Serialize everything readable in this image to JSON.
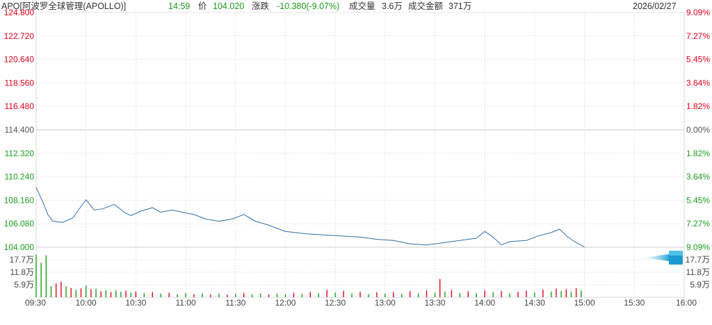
{
  "header": {
    "symbol_name": "APO[阿波罗全球管理(APOLLO)]",
    "time": "14:59",
    "price_label": "价",
    "price": "104.020",
    "change_label": "涨跌",
    "change": "-10.380(-9.07%)",
    "volume_label": "成交量",
    "volume": "3.6万",
    "amount_label": "成交金额",
    "amount": "371万",
    "date": "2026/02/27"
  },
  "colors": {
    "up": "#e0001b",
    "down": "#1a9c1a",
    "neutral": "#555555",
    "price_line": "#2e6fa8",
    "grid": "#e3e3e3",
    "baseline": "#c8c8c8"
  },
  "chart_data": {
    "type": "line",
    "title": "",
    "prev_close": 114.4,
    "price_axis": {
      "ticks": [
        "124.800",
        "122.720",
        "120.640",
        "118.560",
        "116.480",
        "114.400",
        "112.320",
        "110.240",
        "108.160",
        "106.080",
        "104.000"
      ],
      "pct_ticks": [
        "9.09%",
        "7.27%",
        "5.45%",
        "3.64%",
        "1.82%",
        "0.00%",
        "1.82%",
        "3.64%",
        "5.45%",
        "7.27%",
        "9.09%"
      ],
      "range": [
        104.0,
        124.8
      ]
    },
    "volume_axis": {
      "ticks": [
        "17.7万",
        "11.8万",
        "5.9万"
      ],
      "range": [
        0,
        23.6
      ]
    },
    "x_axis": {
      "ticks": [
        "09:30",
        "10:00",
        "10:30",
        "11:00",
        "11:30",
        "12:00",
        "12:30",
        "13:00",
        "13:30",
        "14:00",
        "14:30",
        "15:00",
        "15:30",
        "16:00"
      ]
    },
    "price_series": [
      {
        "t": "09:30",
        "price": 109.3
      },
      {
        "t": "09:34",
        "price": 108.0
      },
      {
        "t": "09:37",
        "price": 106.9
      },
      {
        "t": "09:40",
        "price": 106.3
      },
      {
        "t": "09:46",
        "price": 106.2
      },
      {
        "t": "09:52",
        "price": 106.6
      },
      {
        "t": "09:55",
        "price": 107.2
      },
      {
        "t": "10:00",
        "price": 108.2
      },
      {
        "t": "10:05",
        "price": 107.3
      },
      {
        "t": "10:10",
        "price": 107.4
      },
      {
        "t": "10:17",
        "price": 107.8
      },
      {
        "t": "10:23",
        "price": 107.1
      },
      {
        "t": "10:27",
        "price": 106.8
      },
      {
        "t": "10:33",
        "price": 107.2
      },
      {
        "t": "10:40",
        "price": 107.5
      },
      {
        "t": "10:45",
        "price": 107.1
      },
      {
        "t": "10:52",
        "price": 107.3
      },
      {
        "t": "10:58",
        "price": 107.1
      },
      {
        "t": "11:05",
        "price": 106.9
      },
      {
        "t": "11:12",
        "price": 106.5
      },
      {
        "t": "11:20",
        "price": 106.3
      },
      {
        "t": "11:28",
        "price": 106.5
      },
      {
        "t": "11:35",
        "price": 106.9
      },
      {
        "t": "11:42",
        "price": 106.3
      },
      {
        "t": "11:49",
        "price": 106.0
      },
      {
        "t": "12:00",
        "price": 105.4
      },
      {
        "t": "12:12",
        "price": 105.2
      },
      {
        "t": "12:22",
        "price": 105.1
      },
      {
        "t": "12:33",
        "price": 105.0
      },
      {
        "t": "12:45",
        "price": 104.9
      },
      {
        "t": "12:55",
        "price": 104.7
      },
      {
        "t": "13:05",
        "price": 104.6
      },
      {
        "t": "13:15",
        "price": 104.3
      },
      {
        "t": "13:25",
        "price": 104.2
      },
      {
        "t": "13:35",
        "price": 104.4
      },
      {
        "t": "13:45",
        "price": 104.6
      },
      {
        "t": "13:55",
        "price": 104.8
      },
      {
        "t": "14:00",
        "price": 105.4
      },
      {
        "t": "14:05",
        "price": 104.9
      },
      {
        "t": "14:10",
        "price": 104.2
      },
      {
        "t": "14:15",
        "price": 104.5
      },
      {
        "t": "14:25",
        "price": 104.6
      },
      {
        "t": "14:32",
        "price": 105.0
      },
      {
        "t": "14:40",
        "price": 105.3
      },
      {
        "t": "14:45",
        "price": 105.6
      },
      {
        "t": "14:50",
        "price": 104.9
      },
      {
        "t": "14:55",
        "price": 104.4
      },
      {
        "t": "15:00",
        "price": 104.02
      }
    ],
    "volume_series": [
      {
        "t": "09:30",
        "vol": 20.1,
        "dir": "down"
      },
      {
        "t": "09:33",
        "vol": 16.3,
        "dir": "down"
      },
      {
        "t": "09:36",
        "vol": 19.8,
        "dir": "down"
      },
      {
        "t": "09:39",
        "vol": 5.2,
        "dir": "down"
      },
      {
        "t": "09:42",
        "vol": 6.5,
        "dir": "up"
      },
      {
        "t": "09:45",
        "vol": 7.3,
        "dir": "up"
      },
      {
        "t": "09:48",
        "vol": 5.1,
        "dir": "down"
      },
      {
        "t": "09:51",
        "vol": 4.4,
        "dir": "up"
      },
      {
        "t": "09:54",
        "vol": 3.5,
        "dir": "down"
      },
      {
        "t": "09:57",
        "vol": 4.2,
        "dir": "up"
      },
      {
        "t": "10:00",
        "vol": 5.6,
        "dir": "down"
      },
      {
        "t": "10:03",
        "vol": 3.8,
        "dir": "up"
      },
      {
        "t": "10:06",
        "vol": 4.1,
        "dir": "down"
      },
      {
        "t": "10:09",
        "vol": 2.8,
        "dir": "up"
      },
      {
        "t": "10:12",
        "vol": 3.4,
        "dir": "down"
      },
      {
        "t": "10:15",
        "vol": 2.5,
        "dir": "up"
      },
      {
        "t": "10:18",
        "vol": 3.3,
        "dir": "down"
      },
      {
        "t": "10:21",
        "vol": 2.6,
        "dir": "down"
      },
      {
        "t": "10:24",
        "vol": 3.1,
        "dir": "up"
      },
      {
        "t": "10:27",
        "vol": 2.2,
        "dir": "down"
      },
      {
        "t": "10:30",
        "vol": 2.7,
        "dir": "up"
      },
      {
        "t": "10:35",
        "vol": 1.9,
        "dir": "down"
      },
      {
        "t": "10:40",
        "vol": 2.4,
        "dir": "up"
      },
      {
        "t": "10:45",
        "vol": 1.7,
        "dir": "down"
      },
      {
        "t": "10:50",
        "vol": 2.1,
        "dir": "up"
      },
      {
        "t": "10:55",
        "vol": 1.5,
        "dir": "down"
      },
      {
        "t": "11:00",
        "vol": 2.0,
        "dir": "down"
      },
      {
        "t": "11:05",
        "vol": 1.4,
        "dir": "up"
      },
      {
        "t": "11:10",
        "vol": 1.8,
        "dir": "down"
      },
      {
        "t": "11:15",
        "vol": 1.3,
        "dir": "up"
      },
      {
        "t": "11:20",
        "vol": 1.7,
        "dir": "down"
      },
      {
        "t": "11:25",
        "vol": 1.2,
        "dir": "up"
      },
      {
        "t": "11:30",
        "vol": 1.6,
        "dir": "down"
      },
      {
        "t": "11:35",
        "vol": 2.0,
        "dir": "up"
      },
      {
        "t": "11:40",
        "vol": 1.4,
        "dir": "down"
      },
      {
        "t": "11:45",
        "vol": 1.8,
        "dir": "down"
      },
      {
        "t": "11:50",
        "vol": 1.3,
        "dir": "up"
      },
      {
        "t": "11:55",
        "vol": 1.7,
        "dir": "down"
      },
      {
        "t": "12:00",
        "vol": 1.5,
        "dir": "down"
      },
      {
        "t": "12:05",
        "vol": 2.1,
        "dir": "up"
      },
      {
        "t": "12:10",
        "vol": 1.6,
        "dir": "down"
      },
      {
        "t": "12:15",
        "vol": 2.4,
        "dir": "up"
      },
      {
        "t": "12:20",
        "vol": 1.9,
        "dir": "down"
      },
      {
        "t": "12:25",
        "vol": 3.5,
        "dir": "up"
      },
      {
        "t": "12:30",
        "vol": 2.2,
        "dir": "down"
      },
      {
        "t": "12:35",
        "vol": 3.0,
        "dir": "up"
      },
      {
        "t": "12:40",
        "vol": 1.8,
        "dir": "down"
      },
      {
        "t": "12:45",
        "vol": 2.6,
        "dir": "up"
      },
      {
        "t": "12:50",
        "vol": 1.5,
        "dir": "down"
      },
      {
        "t": "12:55",
        "vol": 2.3,
        "dir": "up"
      },
      {
        "t": "13:00",
        "vol": 1.7,
        "dir": "down"
      },
      {
        "t": "13:05",
        "vol": 2.5,
        "dir": "up"
      },
      {
        "t": "13:10",
        "vol": 1.6,
        "dir": "down"
      },
      {
        "t": "13:15",
        "vol": 2.9,
        "dir": "up"
      },
      {
        "t": "13:20",
        "vol": 1.8,
        "dir": "down"
      },
      {
        "t": "13:25",
        "vol": 3.3,
        "dir": "up"
      },
      {
        "t": "13:30",
        "vol": 2.1,
        "dir": "down"
      },
      {
        "t": "13:33",
        "vol": 8.6,
        "dir": "up"
      },
      {
        "t": "13:36",
        "vol": 2.6,
        "dir": "down"
      },
      {
        "t": "13:40",
        "vol": 3.4,
        "dir": "up"
      },
      {
        "t": "13:45",
        "vol": 2.0,
        "dir": "down"
      },
      {
        "t": "13:50",
        "vol": 2.8,
        "dir": "up"
      },
      {
        "t": "13:55",
        "vol": 1.9,
        "dir": "down"
      },
      {
        "t": "14:00",
        "vol": 3.2,
        "dir": "up"
      },
      {
        "t": "14:05",
        "vol": 2.4,
        "dir": "down"
      },
      {
        "t": "14:10",
        "vol": 2.9,
        "dir": "up"
      },
      {
        "t": "14:15",
        "vol": 1.8,
        "dir": "down"
      },
      {
        "t": "14:20",
        "vol": 2.6,
        "dir": "up"
      },
      {
        "t": "14:25",
        "vol": 3.1,
        "dir": "up"
      },
      {
        "t": "14:30",
        "vol": 2.2,
        "dir": "down"
      },
      {
        "t": "14:35",
        "vol": 3.6,
        "dir": "up"
      },
      {
        "t": "14:40",
        "vol": 2.7,
        "dir": "down"
      },
      {
        "t": "14:43",
        "vol": 4.1,
        "dir": "up"
      },
      {
        "t": "14:46",
        "vol": 3.0,
        "dir": "down"
      },
      {
        "t": "14:49",
        "vol": 3.8,
        "dir": "up"
      },
      {
        "t": "14:52",
        "vol": 2.5,
        "dir": "down"
      },
      {
        "t": "14:55",
        "vol": 4.3,
        "dir": "up"
      },
      {
        "t": "14:58",
        "vol": 3.2,
        "dir": "down"
      }
    ]
  }
}
